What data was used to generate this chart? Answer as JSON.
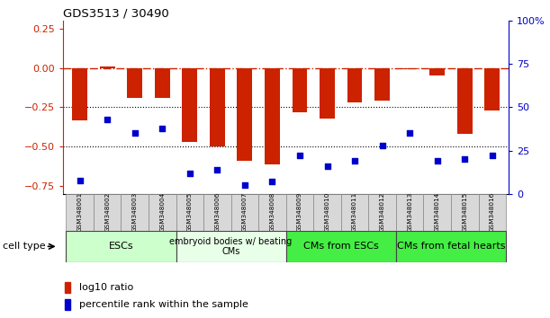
{
  "title": "GDS3513 / 30490",
  "samples": [
    "GSM348001",
    "GSM348002",
    "GSM348003",
    "GSM348004",
    "GSM348005",
    "GSM348006",
    "GSM348007",
    "GSM348008",
    "GSM348009",
    "GSM348010",
    "GSM348011",
    "GSM348012",
    "GSM348013",
    "GSM348014",
    "GSM348015",
    "GSM348016"
  ],
  "log10_ratio": [
    -0.33,
    0.01,
    -0.19,
    -0.19,
    -0.47,
    -0.5,
    -0.59,
    -0.61,
    -0.28,
    -0.32,
    -0.22,
    -0.21,
    -0.01,
    -0.05,
    -0.42,
    -0.27
  ],
  "percentile_rank": [
    8,
    43,
    35,
    38,
    12,
    14,
    5,
    7,
    22,
    16,
    19,
    28,
    35,
    19,
    20,
    22
  ],
  "bar_color": "#cc2200",
  "dot_color": "#0000cc",
  "ylim_left": [
    -0.8,
    0.3
  ],
  "ylim_right": [
    0,
    100
  ],
  "yticks_left": [
    0.25,
    0.0,
    -0.25,
    -0.5,
    -0.75
  ],
  "yticks_right": [
    100,
    75,
    50,
    25,
    0
  ],
  "hline_zero_color": "#cc2200",
  "hline_zero_style": "-.",
  "hline_dotted_color": "black",
  "dotted_lines": [
    -0.25,
    -0.5
  ],
  "cell_type_groups": [
    {
      "label": "ESCs",
      "start": 0,
      "end": 3,
      "color": "#ccffcc"
    },
    {
      "label": "embryoid bodies w/ beating\nCMs",
      "start": 4,
      "end": 7,
      "color": "#e8ffe8"
    },
    {
      "label": "CMs from ESCs",
      "start": 8,
      "end": 11,
      "color": "#44ee44"
    },
    {
      "label": "CMs from fetal hearts",
      "start": 12,
      "end": 15,
      "color": "#44ee44"
    }
  ],
  "cell_type_label": "cell type",
  "legend_red_label": "log10 ratio",
  "legend_blue_label": "percentile rank within the sample",
  "background_color": "#ffffff",
  "plot_bg_color": "#ffffff"
}
